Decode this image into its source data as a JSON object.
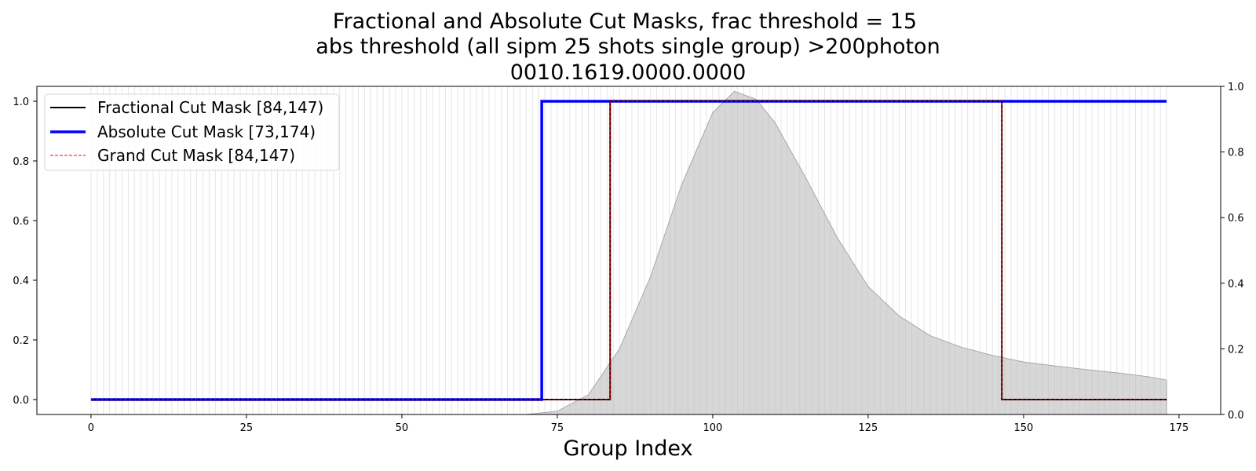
{
  "chart_data": {
    "type": "line",
    "title_lines": [
      "Fractional and Absolute Cut Masks, frac threshold = 15",
      "abs threshold (all sipm 25 shots single group) >200photon",
      "0010.1619.0000.0000"
    ],
    "xlabel": "Group Index",
    "ylabel": "",
    "xlim": [
      -8.7,
      181.7
    ],
    "ylim": [
      -0.05,
      1.05
    ],
    "y2lim": [
      0.0,
      1.0
    ],
    "xticks": [
      0,
      25,
      50,
      75,
      100,
      125,
      150,
      175
    ],
    "yticks": [
      0.0,
      0.2,
      0.4,
      0.6,
      0.8,
      1.0
    ],
    "y2ticks": [
      0.0,
      0.2,
      0.4,
      0.6,
      0.8,
      1.0
    ],
    "grid": "vertical lines at every group index",
    "legend_position": "upper-left",
    "series": [
      {
        "name": "Fractional Cut Mask [84,147)",
        "color": "#000000",
        "style": "solid",
        "x": [
          0,
          83.5,
          83.5,
          146.5,
          146.5,
          173
        ],
        "y": [
          0,
          0,
          1,
          1,
          0,
          0
        ]
      },
      {
        "name": "Absolute Cut Mask [73,174)",
        "color": "#0000ff",
        "style": "solid",
        "x": [
          0,
          72.5,
          72.5,
          173
        ],
        "y": [
          0,
          0,
          1,
          1
        ]
      },
      {
        "name": "Grand Cut Mask [84,147)",
        "color": "#ff0000",
        "style": "dashed",
        "x": [
          0,
          83.5,
          83.5,
          146.5,
          146.5,
          173
        ],
        "y": [
          0,
          0,
          1,
          1,
          0,
          0
        ]
      }
    ],
    "background_profile": {
      "axis": "secondary",
      "color": "#bebebe",
      "x": [
        0,
        70,
        75,
        80,
        85,
        90,
        95,
        100,
        103.5,
        107,
        110,
        115,
        120,
        125,
        130,
        135,
        140,
        145,
        150,
        155,
        160,
        165,
        170,
        173
      ],
      "y": [
        0,
        0,
        0.01,
        0.06,
        0.2,
        0.42,
        0.7,
        0.92,
        0.985,
        0.96,
        0.89,
        0.72,
        0.54,
        0.39,
        0.3,
        0.24,
        0.205,
        0.18,
        0.16,
        0.148,
        0.137,
        0.127,
        0.115,
        0.105
      ]
    }
  }
}
